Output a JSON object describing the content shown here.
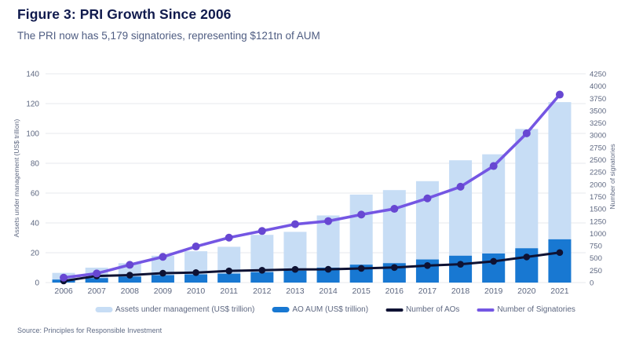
{
  "header": {
    "title": "Figure 3: PRI Growth Since 2006",
    "subtitle": "The PRI now has 5,179 signatories, representing $121tn of AUM"
  },
  "source_note": "Source: Principles for Responsible Investment",
  "colors": {
    "title_text": "#101a4d",
    "subtitle_text": "#4f5d82",
    "axis_text": "#5d6780",
    "gridline": "#e7e8ec",
    "light_bar": "#c7ddf5",
    "dark_bar": "#1878d2",
    "navy_line": "#0e1233",
    "purple_line": "#7456e3"
  },
  "chart_data": {
    "type": "bar",
    "subtype": "combo dual-axis: two bar series (left axis) + two line series (right axis)",
    "title": "Figure 3: PRI Growth Since 2006",
    "subtitle": "The PRI now has 5,179 signatories, representing $121tn of AUM",
    "categories": [
      "2006",
      "2007",
      "2008",
      "2009",
      "2010",
      "2011",
      "2012",
      "2013",
      "2014",
      "2015",
      "2016",
      "2017",
      "2018",
      "2019",
      "2020",
      "2021"
    ],
    "series": [
      {
        "name": "Assets under management (US$ trillion)",
        "type": "bar",
        "axis": "left",
        "color": "#c7ddf5",
        "values": [
          6.5,
          10,
          13,
          18,
          21,
          24,
          32,
          34,
          45,
          59,
          62,
          68,
          82,
          86,
          103,
          121
        ]
      },
      {
        "name": "AO AUM (US$ trillion)",
        "type": "bar",
        "axis": "left",
        "color": "#1878d2",
        "values": [
          2,
          3,
          4,
          5,
          5.5,
          6,
          7,
          8,
          10,
          12,
          13,
          15.5,
          18,
          19.5,
          23,
          29
        ]
      },
      {
        "name": "Number of AOs",
        "type": "line",
        "axis": "right",
        "color": "#0e1233",
        "point_color": "#0e1233",
        "values": [
          32,
          135,
          151,
          191,
          203,
          237,
          251,
          268,
          270,
          288,
          307,
          346,
          373,
          432,
          521,
          611
        ]
      },
      {
        "name": "Number of Signatories",
        "type": "line",
        "axis": "right",
        "color": "#7456e3",
        "point_color": "#6747d2",
        "values": [
          100,
          185,
          361,
          523,
          734,
          915,
          1050,
          1188,
          1251,
          1384,
          1501,
          1714,
          1951,
          2372,
          3038,
          3826
        ]
      }
    ],
    "left_axis": {
      "label": "Assets under management (US$ trillion)",
      "min": 0,
      "max": 140,
      "step": 20
    },
    "right_axis": {
      "label": "Number of signatories",
      "min": 0,
      "max": 4250,
      "step": 250
    },
    "grid": "horizontal gridlines only",
    "legend_position": "bottom"
  }
}
